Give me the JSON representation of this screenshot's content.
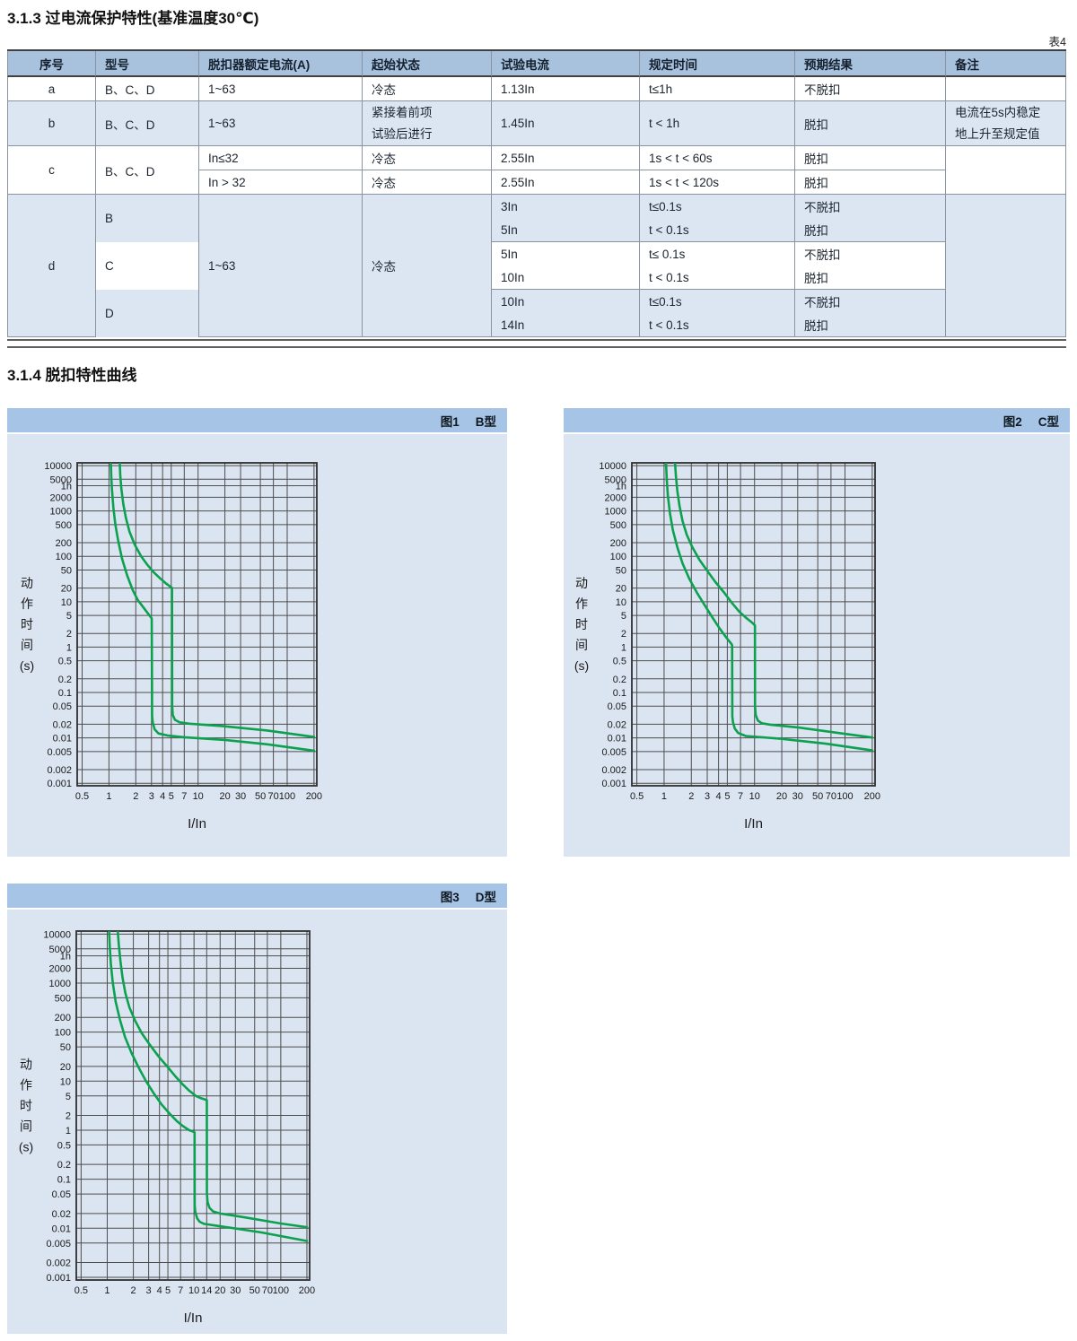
{
  "page": {
    "section1_title": "3.1.3 过电流保护特性(基准温度30℃)",
    "section2_title": "3.1.4 脱扣特性曲线",
    "table_tag": "表4"
  },
  "style": {
    "curve_green": "#0ba14f",
    "grid_color": "#4d4d4d",
    "border_color": "#2f2f2f",
    "panel_bar_blue": "#a6c4e6",
    "panel_body_blue": "#dbe4f1",
    "row_blue": "#dce6f3",
    "header_blue": "#a8c2de"
  },
  "table": {
    "headers": [
      "序号",
      "型号",
      "脱扣器额定电流(A)",
      "起始状态",
      "试验电流",
      "规定时间",
      "预期结果",
      "备注"
    ],
    "rows": {
      "a": {
        "no": "a",
        "model": "B、C、D",
        "current": "1~63",
        "state": "冷态",
        "test": "1.13In",
        "time": "t≤1h",
        "result": "不脱扣",
        "note": ""
      },
      "b": {
        "no": "b",
        "model": "B、C、D",
        "current": "1~63",
        "state1": "紧接着前项",
        "state2": "试验后进行",
        "test": "1.45In",
        "time": "t < 1h",
        "result": "脱扣",
        "note1": "电流在5s内稳定",
        "note2": "地上升至规定值"
      },
      "c": {
        "no": "c",
        "model": "B、C、D",
        "r1": {
          "current": "In≤32",
          "state": "冷态",
          "test": "2.55In",
          "time": "1s < t < 60s",
          "result": "脱扣"
        },
        "r2": {
          "current": "In > 32",
          "state": "冷态",
          "test": "2.55In",
          "time": "1s < t < 120s",
          "result": "脱扣"
        }
      },
      "d": {
        "no": "d",
        "current": "1~63",
        "state": "冷态",
        "note": "",
        "b": {
          "model": "B",
          "r1": {
            "test": "3In",
            "time": "t≤0.1s",
            "result": "不脱扣"
          },
          "r2": {
            "test": "5In",
            "time": "t < 0.1s",
            "result": "脱扣"
          }
        },
        "c": {
          "model": "C",
          "r1": {
            "test": "5In",
            "time": "t≤ 0.1s",
            "result": "不脱扣"
          },
          "r2": {
            "test": "10In",
            "time": "t < 0.1s",
            "result": "脱扣"
          }
        },
        "d": {
          "model": "D",
          "r1": {
            "test": "10In",
            "time": "t≤0.1s",
            "result": "不脱扣"
          },
          "r2": {
            "test": "14In",
            "time": "t < 0.1s",
            "result": "脱扣"
          }
        }
      }
    }
  },
  "chart_data": [
    {
      "type": "line",
      "title": "图1",
      "subtitle": "B型",
      "xlabel": "I/In",
      "ylabel": "动作时间(s)",
      "ylabel_lines": [
        "动",
        "作",
        "时",
        "间",
        "(s)"
      ],
      "xlim": [
        0.5,
        200
      ],
      "ylim": [
        0.001,
        10000
      ],
      "x_range": [
        0.44,
        215
      ],
      "y_range": [
        0.00088,
        11500
      ],
      "grid": true,
      "legend_position": "none",
      "x_ticks": [
        0.5,
        1,
        2,
        3,
        4,
        5,
        7,
        10,
        20,
        30,
        50,
        70,
        100,
        200
      ],
      "y_ticks": [
        {
          "v": 10000,
          "l": "10000"
        },
        {
          "v": 5000,
          "l": "5000"
        },
        {
          "v": 3600,
          "l": "1h"
        },
        {
          "v": 2000,
          "l": "2000"
        },
        {
          "v": 1000,
          "l": "1000"
        },
        {
          "v": 500,
          "l": "500"
        },
        {
          "v": 200,
          "l": "200"
        },
        {
          "v": 100,
          "l": "100"
        },
        {
          "v": 50,
          "l": "50"
        },
        {
          "v": 20,
          "l": "20"
        },
        {
          "v": 10,
          "l": "10"
        },
        {
          "v": 5,
          "l": "5"
        },
        {
          "v": 2,
          "l": "2"
        },
        {
          "v": 1,
          "l": "1"
        },
        {
          "v": 0.5,
          "l": "0.5"
        },
        {
          "v": 0.2,
          "l": "0.2"
        },
        {
          "v": 0.1,
          "l": "0.1"
        },
        {
          "v": 0.05,
          "l": "0.05"
        },
        {
          "v": 0.02,
          "l": "0.02"
        },
        {
          "v": 0.01,
          "l": "0.01"
        },
        {
          "v": 0.005,
          "l": "0.005"
        },
        {
          "v": 0.002,
          "l": "0.002"
        },
        {
          "v": 0.001,
          "l": "0.001"
        }
      ],
      "series": [
        {
          "name": "lower-limit",
          "points": [
            [
              1.05,
              12000
            ],
            [
              1.06,
              6000
            ],
            [
              1.08,
              3000
            ],
            [
              1.12,
              1200
            ],
            [
              1.18,
              500
            ],
            [
              1.27,
              220
            ],
            [
              1.4,
              90
            ],
            [
              1.6,
              38
            ],
            [
              1.85,
              18
            ],
            [
              2.1,
              11
            ],
            [
              2.5,
              7
            ],
            [
              2.8,
              5.2
            ],
            [
              3.02,
              4.3
            ],
            [
              3.05,
              0.03
            ],
            [
              3.1,
              0.022
            ],
            [
              3.25,
              0.0155
            ],
            [
              3.6,
              0.0125
            ],
            [
              4.5,
              0.0113
            ],
            [
              7,
              0.0103
            ],
            [
              20,
              0.009
            ],
            [
              60,
              0.0072
            ],
            [
              200,
              0.0052
            ]
          ]
        },
        {
          "name": "upper-limit",
          "points": [
            [
              1.32,
              12000
            ],
            [
              1.34,
              6000
            ],
            [
              1.38,
              3000
            ],
            [
              1.45,
              1400
            ],
            [
              1.55,
              700
            ],
            [
              1.7,
              350
            ],
            [
              1.95,
              180
            ],
            [
              2.3,
              100
            ],
            [
              2.7,
              65
            ],
            [
              3.2,
              44
            ],
            [
              3.8,
              32
            ],
            [
              4.4,
              25
            ],
            [
              5.05,
              20.5
            ],
            [
              5.1,
              20
            ],
            [
              5.12,
              0.05
            ],
            [
              5.2,
              0.032
            ],
            [
              5.5,
              0.025
            ],
            [
              6.2,
              0.022
            ],
            [
              8,
              0.0205
            ],
            [
              20,
              0.018
            ],
            [
              60,
              0.0145
            ],
            [
              200,
              0.0105
            ]
          ]
        }
      ]
    },
    {
      "type": "line",
      "title": "图2",
      "subtitle": "C型",
      "xlabel": "I/In",
      "ylabel": "动作时间(s)",
      "ylabel_lines": [
        "动",
        "作",
        "时",
        "间",
        "(s)"
      ],
      "xlim": [
        0.5,
        200
      ],
      "ylim": [
        0.001,
        10000
      ],
      "x_range": [
        0.44,
        215
      ],
      "y_range": [
        0.00088,
        11500
      ],
      "grid": true,
      "legend_position": "none",
      "x_ticks": [
        0.5,
        1,
        2,
        3,
        4,
        5,
        7,
        10,
        20,
        30,
        50,
        70,
        100,
        200
      ],
      "y_ticks": [
        {
          "v": 10000,
          "l": "10000"
        },
        {
          "v": 5000,
          "l": "5000"
        },
        {
          "v": 3600,
          "l": "1h"
        },
        {
          "v": 2000,
          "l": "2000"
        },
        {
          "v": 1000,
          "l": "1000"
        },
        {
          "v": 500,
          "l": "500"
        },
        {
          "v": 200,
          "l": "200"
        },
        {
          "v": 100,
          "l": "100"
        },
        {
          "v": 50,
          "l": "50"
        },
        {
          "v": 20,
          "l": "20"
        },
        {
          "v": 10,
          "l": "10"
        },
        {
          "v": 5,
          "l": "5"
        },
        {
          "v": 2,
          "l": "2"
        },
        {
          "v": 1,
          "l": "1"
        },
        {
          "v": 0.5,
          "l": "0.5"
        },
        {
          "v": 0.2,
          "l": "0.2"
        },
        {
          "v": 0.1,
          "l": "0.1"
        },
        {
          "v": 0.05,
          "l": "0.05"
        },
        {
          "v": 0.02,
          "l": "0.02"
        },
        {
          "v": 0.01,
          "l": "0.01"
        },
        {
          "v": 0.005,
          "l": "0.005"
        },
        {
          "v": 0.002,
          "l": "0.002"
        },
        {
          "v": 0.001,
          "l": "0.001"
        }
      ],
      "series": [
        {
          "name": "lower-limit",
          "points": [
            [
              1.05,
              12000
            ],
            [
              1.07,
              5000
            ],
            [
              1.1,
              2200
            ],
            [
              1.16,
              900
            ],
            [
              1.25,
              380
            ],
            [
              1.4,
              160
            ],
            [
              1.6,
              70
            ],
            [
              1.9,
              32
            ],
            [
              2.3,
              16
            ],
            [
              2.8,
              8.5
            ],
            [
              3.4,
              4.6
            ],
            [
              4.1,
              2.6
            ],
            [
              4.9,
              1.6
            ],
            [
              5.55,
              1.18
            ],
            [
              5.65,
              1.1
            ],
            [
              5.68,
              0.03
            ],
            [
              5.78,
              0.022
            ],
            [
              6.05,
              0.016
            ],
            [
              6.6,
              0.0128
            ],
            [
              8,
              0.011
            ],
            [
              20,
              0.0095
            ],
            [
              60,
              0.0075
            ],
            [
              200,
              0.0053
            ]
          ]
        },
        {
          "name": "upper-limit",
          "points": [
            [
              1.32,
              12000
            ],
            [
              1.35,
              6000
            ],
            [
              1.4,
              2800
            ],
            [
              1.48,
              1300
            ],
            [
              1.6,
              600
            ],
            [
              1.78,
              300
            ],
            [
              2.05,
              160
            ],
            [
              2.45,
              85
            ],
            [
              3,
              48
            ],
            [
              3.7,
              27
            ],
            [
              4.6,
              16
            ],
            [
              5.6,
              9.5
            ],
            [
              6.8,
              6
            ],
            [
              8.2,
              4.3
            ],
            [
              9.5,
              3.4
            ],
            [
              10.05,
              3.05
            ],
            [
              10.1,
              3
            ],
            [
              10.12,
              0.05
            ],
            [
              10.3,
              0.032
            ],
            [
              10.9,
              0.024
            ],
            [
              12,
              0.021
            ],
            [
              15,
              0.0195
            ],
            [
              30,
              0.017
            ],
            [
              80,
              0.013
            ],
            [
              200,
              0.0102
            ]
          ]
        }
      ]
    },
    {
      "type": "line",
      "title": "图3",
      "subtitle": "D型",
      "xlabel": "I/In",
      "ylabel": "动作时间(s)",
      "ylabel_lines": [
        "动",
        "作",
        "时",
        "间",
        "(s)"
      ],
      "xlim": [
        0.5,
        200
      ],
      "ylim": [
        0.001,
        10000
      ],
      "x_range": [
        0.44,
        215
      ],
      "y_range": [
        0.00088,
        11500
      ],
      "grid": true,
      "legend_position": "none",
      "x_ticks": [
        0.5,
        1,
        2,
        3,
        4,
        5,
        7,
        10,
        14,
        20,
        30,
        50,
        70,
        100,
        200
      ],
      "y_ticks": [
        {
          "v": 10000,
          "l": "10000"
        },
        {
          "v": 5000,
          "l": "5000"
        },
        {
          "v": 3600,
          "l": "1h"
        },
        {
          "v": 2000,
          "l": "2000"
        },
        {
          "v": 1000,
          "l": "1000"
        },
        {
          "v": 500,
          "l": "500"
        },
        {
          "v": 200,
          "l": "200"
        },
        {
          "v": 100,
          "l": "100"
        },
        {
          "v": 50,
          "l": "50"
        },
        {
          "v": 20,
          "l": "20"
        },
        {
          "v": 10,
          "l": "10"
        },
        {
          "v": 5,
          "l": "5"
        },
        {
          "v": 2,
          "l": "2"
        },
        {
          "v": 1,
          "l": "1"
        },
        {
          "v": 0.5,
          "l": "0.5"
        },
        {
          "v": 0.2,
          "l": "0.2"
        },
        {
          "v": 0.1,
          "l": "0.1"
        },
        {
          "v": 0.05,
          "l": "0.05"
        },
        {
          "v": 0.02,
          "l": "0.02"
        },
        {
          "v": 0.01,
          "l": "0.01"
        },
        {
          "v": 0.005,
          "l": "0.005"
        },
        {
          "v": 0.002,
          "l": "0.002"
        },
        {
          "v": 0.001,
          "l": "0.001"
        }
      ],
      "series": [
        {
          "name": "lower-limit",
          "points": [
            [
              1.05,
              12000
            ],
            [
              1.07,
              5500
            ],
            [
              1.1,
              2500
            ],
            [
              1.16,
              1000
            ],
            [
              1.25,
              420
            ],
            [
              1.4,
              180
            ],
            [
              1.6,
              80
            ],
            [
              1.9,
              38
            ],
            [
              2.3,
              19
            ],
            [
              2.8,
              10
            ],
            [
              3.4,
              5.8
            ],
            [
              4.2,
              3.4
            ],
            [
              5.2,
              2.2
            ],
            [
              6.3,
              1.55
            ],
            [
              7.5,
              1.2
            ],
            [
              8.8,
              1.0
            ],
            [
              10,
              0.92
            ],
            [
              10.15,
              0.9
            ],
            [
              10.18,
              0.03
            ],
            [
              10.32,
              0.022
            ],
            [
              10.85,
              0.016
            ],
            [
              11.6,
              0.0136
            ],
            [
              13,
              0.0123
            ],
            [
              20,
              0.011
            ],
            [
              60,
              0.0082
            ],
            [
              200,
              0.0055
            ]
          ]
        },
        {
          "name": "upper-limit",
          "points": [
            [
              1.32,
              12000
            ],
            [
              1.36,
              6000
            ],
            [
              1.42,
              2800
            ],
            [
              1.5,
              1300
            ],
            [
              1.62,
              620
            ],
            [
              1.8,
              320
            ],
            [
              2.1,
              170
            ],
            [
              2.5,
              95
            ],
            [
              3.1,
              55
            ],
            [
              3.9,
              32
            ],
            [
              4.9,
              20
            ],
            [
              6,
              13
            ],
            [
              7.3,
              8.8
            ],
            [
              8.8,
              6.4
            ],
            [
              10.5,
              5
            ],
            [
              12,
              4.5
            ],
            [
              13.5,
              4.2
            ],
            [
              14.05,
              4.1
            ],
            [
              14.08,
              0.05
            ],
            [
              14.35,
              0.034
            ],
            [
              15.1,
              0.026
            ],
            [
              16.6,
              0.022
            ],
            [
              20,
              0.02
            ],
            [
              40,
              0.0165
            ],
            [
              100,
              0.0125
            ],
            [
              200,
              0.0105
            ]
          ]
        }
      ]
    }
  ]
}
